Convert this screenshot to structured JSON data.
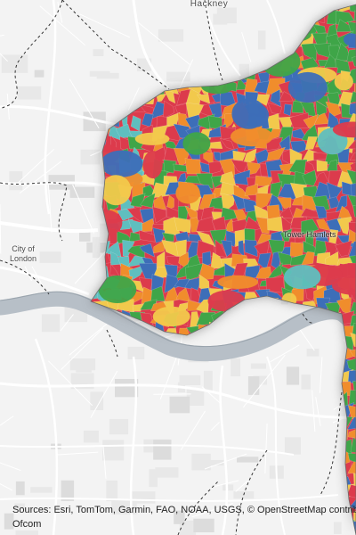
{
  "map": {
    "labels": {
      "hackney": "Hackney",
      "city_of_london_1": "City of",
      "city_of_london_2": "London",
      "tower_hamlets": "Tower Hamlets"
    },
    "attribution": {
      "line1": "Sources: Esri, TomTom, Garmin, FAO, NOAA, USGS, © OpenStreetMap contribut",
      "line2": "Ofcom"
    },
    "palette": [
      "#dc3b4c",
      "#f08d2c",
      "#f2c94c",
      "#3fa548",
      "#3d6eb8",
      "#5fbfbf"
    ],
    "basemap": {
      "background": "#f3f3f3",
      "river": "#b7bfc7",
      "roads": "#ffffff",
      "boundary": "#333333"
    }
  }
}
